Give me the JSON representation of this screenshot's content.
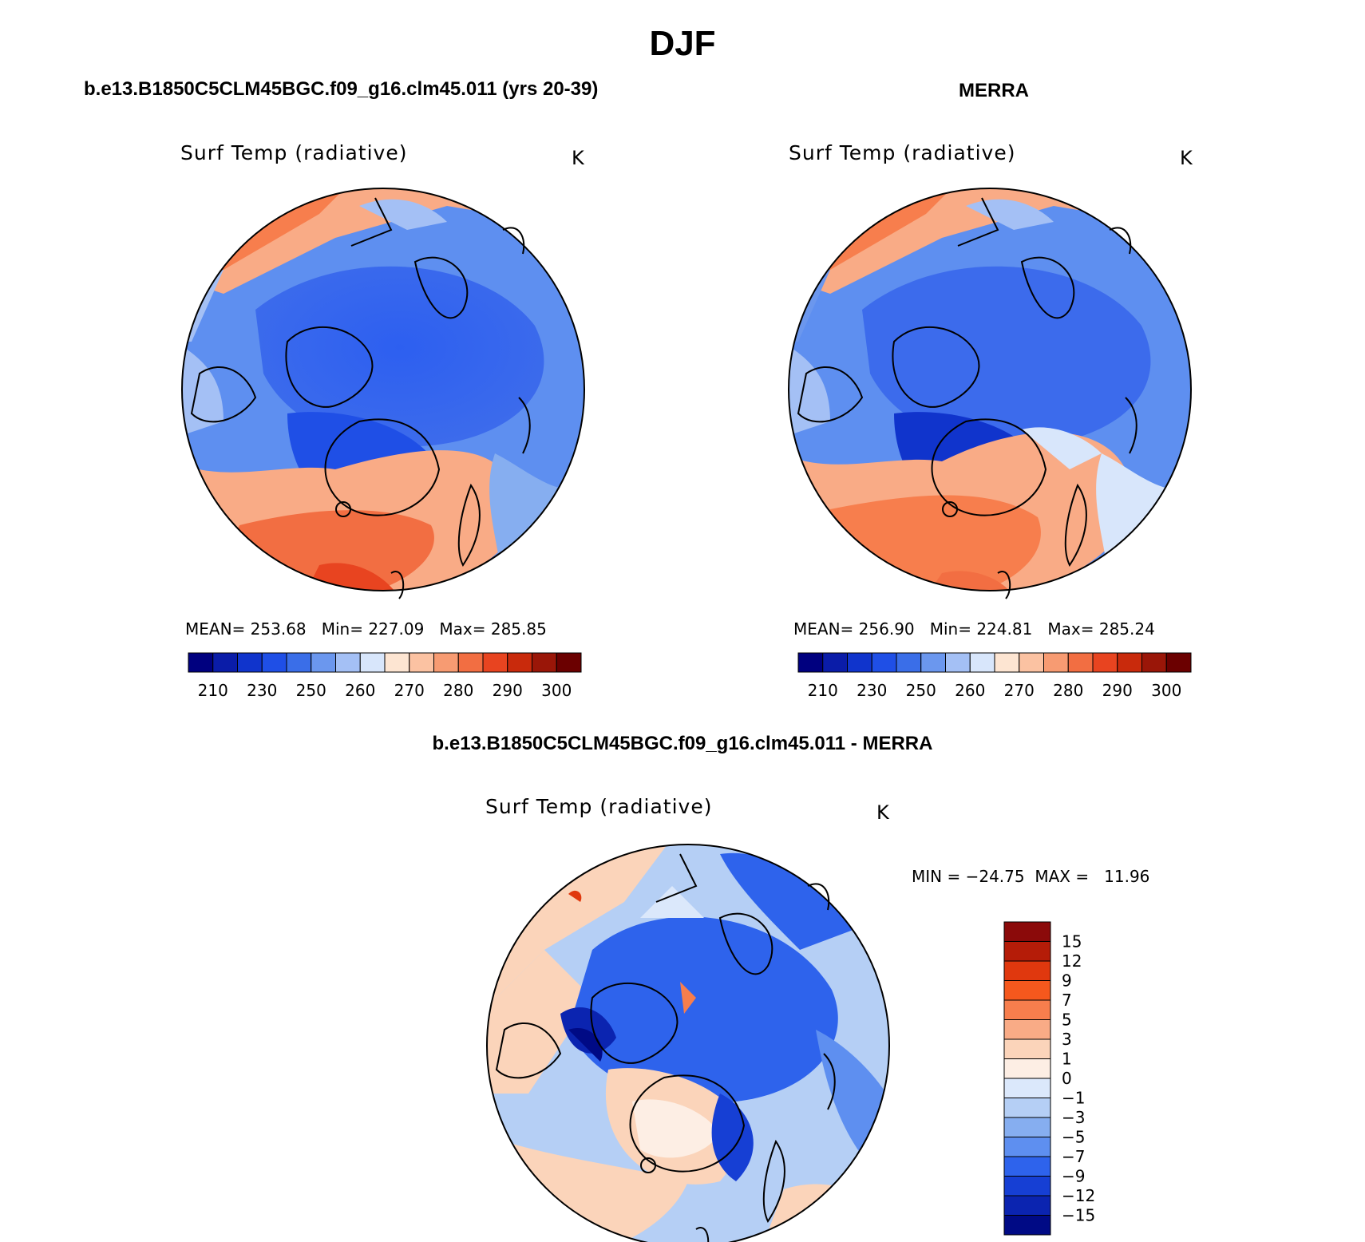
{
  "title": "DJF",
  "panels": {
    "model": {
      "heading": "b.e13.B1850C5CLM45BGC.f09_g16.clm45.011 (yrs 20-39)",
      "variable": "Surf Temp (radiative)",
      "units": "K",
      "stats": {
        "mean_label": "MEAN=",
        "mean": "253.68",
        "min_label": "Min=",
        "min": "227.09",
        "max_label": "Max=",
        "max": "285.85"
      }
    },
    "obs": {
      "heading": "MERRA",
      "variable": "Surf Temp (radiative)",
      "units": "K",
      "stats": {
        "mean_label": "MEAN=",
        "mean": "256.90",
        "min_label": "Min=",
        "min": "224.81",
        "max_label": "Max=",
        "max": "285.24"
      }
    },
    "diff": {
      "heading": "b.e13.B1850C5CLM45BGC.f09_g16.clm45.011 - MERRA",
      "variable": "Surf Temp (radiative)",
      "units": "K",
      "minmax": "MIN = −24.75  MAX =   11.96"
    }
  },
  "colorbar_abs": {
    "tick_labels": [
      "210",
      "230",
      "250",
      "260",
      "270",
      "280",
      "290",
      "300"
    ],
    "colors": [
      "#00007f",
      "#0a1ca8",
      "#1034cc",
      "#1f4fe6",
      "#3a6ee8",
      "#6b97ee",
      "#a4c0f5",
      "#d8e6fb",
      "#fde5d2",
      "#fbc2a2",
      "#f79b72",
      "#f26e42",
      "#e84420",
      "#c92a0c",
      "#9a1608",
      "#6b0000"
    ]
  },
  "colorbar_diff": {
    "tick_labels": [
      "15",
      "12",
      "9",
      "7",
      "5",
      "3",
      "1",
      "0",
      "−1",
      "−3",
      "−5",
      "−7",
      "−9",
      "−12",
      "−15"
    ],
    "colors": [
      "#8b0a0a",
      "#b51c08",
      "#e0380e",
      "#f5581d",
      "#f77e4d",
      "#f9ab86",
      "#fbd4ba",
      "#fdeee4",
      "#dbe8fb",
      "#b5cff5",
      "#86aef0",
      "#5e8ff0",
      "#2e63ec",
      "#163fd4",
      "#0b24b0",
      "#000a85"
    ]
  },
  "colors": {
    "ocean_warm": "#f58c5e",
    "cold_blue": "#2d5ff0"
  }
}
